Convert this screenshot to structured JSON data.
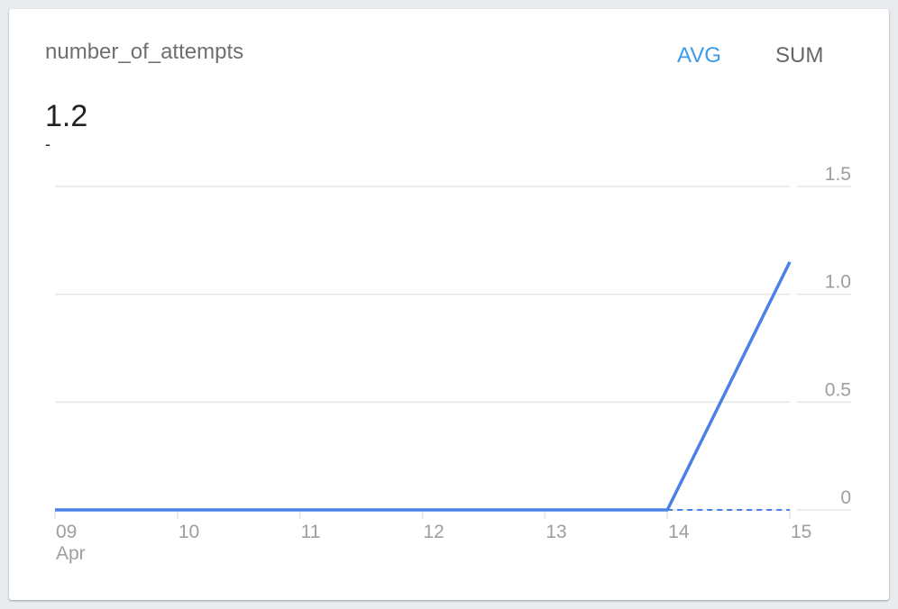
{
  "card": {
    "title": "number_of_attempts",
    "value": "1.2",
    "subvalue": "-",
    "buttons": {
      "avg": "AVG",
      "sum": "SUM"
    },
    "active": "AVG"
  },
  "colors": {
    "line": "#4a80e8",
    "active_button": "#3d9be9",
    "grid": "#e6e6e6"
  },
  "chart_data": {
    "type": "line",
    "x_ticks": [
      "09",
      "10",
      "11",
      "12",
      "13",
      "14",
      "15"
    ],
    "x_sublabel": "Apr",
    "y_ticks": [
      "0",
      "0.5",
      "1.0",
      "1.5"
    ],
    "ylim": [
      0,
      1.5
    ],
    "y_axis_position": "right",
    "grid": true,
    "series": [
      {
        "x": [
          "09",
          "10",
          "11",
          "12",
          "13",
          "14",
          "15"
        ],
        "values": [
          0,
          0,
          0,
          0,
          0,
          0,
          1.15
        ]
      }
    ],
    "dashed_baseline": {
      "from": "14",
      "to": "15",
      "value": 0
    }
  }
}
